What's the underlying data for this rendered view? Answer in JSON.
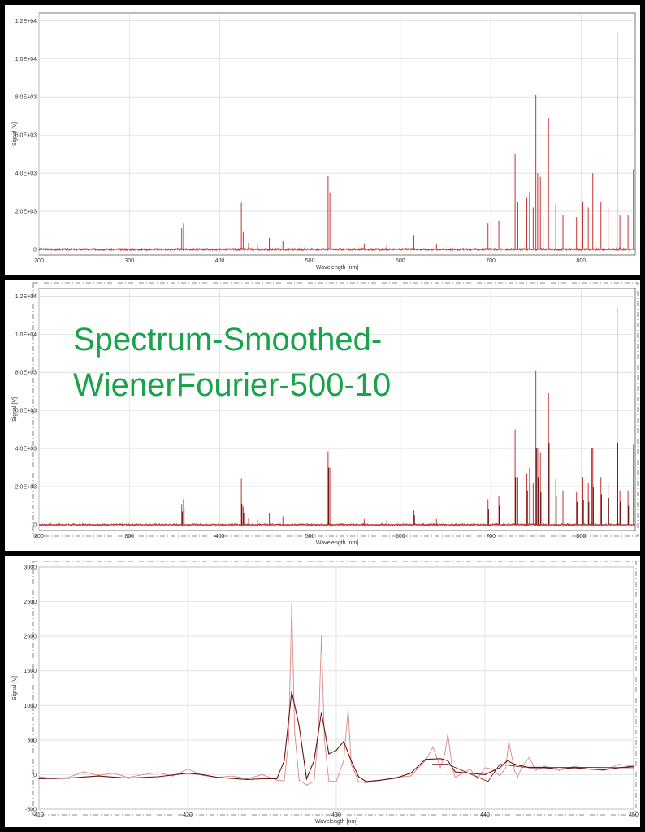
{
  "overlay_title": "Spectrum-Smoothed-\nWienerFourier-500-10",
  "colors": {
    "raw": "#c8322e",
    "raw_light": "#d98a86",
    "smoothed": "#6a1414",
    "grid": "#d8d8d8",
    "frame": "#555555"
  },
  "chart_data": [
    {
      "type": "line",
      "id": "raw-full",
      "xlabel": "Wavelength [nm]",
      "ylabel": "Signal [V]",
      "xlim": [
        200,
        860
      ],
      "ylim": [
        -300,
        12400
      ],
      "x_ticks": [
        200,
        300,
        400,
        500,
        600,
        700,
        800
      ],
      "y_ticks": [
        0,
        2000,
        4000,
        6000,
        8000,
        10000,
        12000
      ],
      "y_tick_labels": [
        "0",
        "2.0E+03",
        "4.0E+03",
        "6.0E+03",
        "8.0E+03",
        "1.0E+04",
        "1.2E+04"
      ],
      "grid": true,
      "baseline": 0,
      "noise_amplitude": 60,
      "series": [
        {
          "peaks": [
            [
              358,
              1100
            ],
            [
              360,
              1350
            ],
            [
              424,
              2450
            ],
            [
              426,
              950
            ],
            [
              428,
              600
            ],
            [
              432,
              350
            ],
            [
              442,
              280
            ],
            [
              455,
              600
            ],
            [
              470,
              450
            ],
            [
              520,
              3850
            ],
            [
              522,
              3000
            ],
            [
              560,
              300
            ],
            [
              585,
              250
            ],
            [
              615,
              750
            ],
            [
              640,
              300
            ],
            [
              697,
              1350
            ],
            [
              709,
              1500
            ],
            [
              727,
              5000
            ],
            [
              730,
              2500
            ],
            [
              740,
              2700
            ],
            [
              743,
              3000
            ],
            [
              747,
              2200
            ],
            [
              750,
              8100
            ],
            [
              752,
              4000
            ],
            [
              755,
              3800
            ],
            [
              758,
              1700
            ],
            [
              764,
              6900
            ],
            [
              772,
              2400
            ],
            [
              780,
              1800
            ],
            [
              795,
              1700
            ],
            [
              802,
              2500
            ],
            [
              808,
              2200
            ],
            [
              811,
              9000
            ],
            [
              813,
              4000
            ],
            [
              822,
              2500
            ],
            [
              830,
              2200
            ],
            [
              840,
              11400
            ],
            [
              843,
              1800
            ],
            [
              852,
              1800
            ],
            [
              858,
              4200
            ]
          ]
        }
      ]
    },
    {
      "type": "line",
      "id": "smoothed-full",
      "xlabel": "Wavelength [nm]",
      "ylabel": "Signal [V]",
      "xlim": [
        200,
        860
      ],
      "ylim": [
        -300,
        12400
      ],
      "x_ticks": [
        200,
        300,
        400,
        500,
        600,
        700,
        800
      ],
      "y_ticks": [
        0,
        2000,
        4000,
        6000,
        8000,
        10000,
        12000
      ],
      "y_tick_labels": [
        "0",
        "2.0E+03",
        "4.0E+03",
        "6.0E+03",
        "8.0E+03",
        "1.0E+04",
        "1.2E+04"
      ],
      "grid": true,
      "baseline": 0,
      "noise_amplitude": 60,
      "series": [
        {
          "peaks": [
            [
              358,
              1100
            ],
            [
              360,
              1350
            ],
            [
              424,
              2450
            ],
            [
              426,
              950
            ],
            [
              428,
              600
            ],
            [
              432,
              350
            ],
            [
              442,
              280
            ],
            [
              455,
              600
            ],
            [
              470,
              450
            ],
            [
              520,
              3850
            ],
            [
              522,
              3000
            ],
            [
              560,
              300
            ],
            [
              585,
              250
            ],
            [
              615,
              750
            ],
            [
              640,
              300
            ],
            [
              697,
              1350
            ],
            [
              709,
              1500
            ],
            [
              727,
              5000
            ],
            [
              730,
              2500
            ],
            [
              740,
              2700
            ],
            [
              743,
              3000
            ],
            [
              747,
              2200
            ],
            [
              750,
              8100
            ],
            [
              752,
              4000
            ],
            [
              755,
              3800
            ],
            [
              758,
              1700
            ],
            [
              764,
              6900
            ],
            [
              772,
              2400
            ],
            [
              780,
              1800
            ],
            [
              795,
              1700
            ],
            [
              802,
              2500
            ],
            [
              808,
              2200
            ],
            [
              811,
              9000
            ],
            [
              813,
              4000
            ],
            [
              822,
              2500
            ],
            [
              830,
              2200
            ],
            [
              840,
              11400
            ],
            [
              843,
              1800
            ],
            [
              852,
              1800
            ],
            [
              858,
              4200
            ]
          ]
        },
        {
          "peaks": [
            [
              358,
              700
            ],
            [
              360,
              900
            ],
            [
              424,
              1100
            ],
            [
              426,
              600
            ],
            [
              520,
              3000
            ],
            [
              615,
              500
            ],
            [
              697,
              800
            ],
            [
              709,
              1000
            ],
            [
              727,
              2500
            ],
            [
              740,
              1800
            ],
            [
              743,
              2200
            ],
            [
              750,
              4000
            ],
            [
              752,
              2500
            ],
            [
              755,
              1700
            ],
            [
              764,
              4300
            ],
            [
              772,
              1500
            ],
            [
              795,
              1200
            ],
            [
              802,
              1300
            ],
            [
              808,
              1200
            ],
            [
              811,
              4000
            ],
            [
              813,
              2000
            ],
            [
              822,
              1600
            ],
            [
              830,
              1400
            ],
            [
              840,
              4300
            ],
            [
              843,
              1200
            ],
            [
              852,
              1000
            ],
            [
              858,
              2000
            ]
          ]
        }
      ]
    },
    {
      "type": "line",
      "id": "zoom",
      "xlabel": "Wavelength [nm]",
      "ylabel": "Signal [V]",
      "xlim": [
        410,
        450
      ],
      "ylim": [
        -500,
        3000
      ],
      "x_ticks": [
        410,
        420,
        430,
        440,
        450
      ],
      "y_ticks": [
        -500,
        0,
        500,
        1000,
        1500,
        2000,
        2500,
        3000
      ],
      "y_tick_labels": [
        "-500",
        "0",
        "500",
        "1000",
        "1500",
        "2000",
        "2500",
        "3000"
      ],
      "grid": true,
      "series": [
        {
          "points": [
            [
              410,
              -30
            ],
            [
              411,
              -60
            ],
            [
              412,
              -40
            ],
            [
              413,
              40
            ],
            [
              414,
              -10
            ],
            [
              415,
              20
            ],
            [
              416,
              -40
            ],
            [
              417,
              0
            ],
            [
              418,
              30
            ],
            [
              419,
              -20
            ],
            [
              420,
              80
            ],
            [
              421,
              -10
            ],
            [
              422,
              -40
            ],
            [
              423,
              -20
            ],
            [
              424,
              -60
            ],
            [
              425,
              0
            ],
            [
              426,
              -80
            ],
            [
              426.5,
              -90
            ],
            [
              426.8,
              500
            ],
            [
              427,
              2480
            ],
            [
              427.2,
              600
            ],
            [
              427.5,
              -80
            ],
            [
              428,
              -150
            ],
            [
              428.5,
              -100
            ],
            [
              428.8,
              600
            ],
            [
              429,
              2000
            ],
            [
              429.2,
              500
            ],
            [
              429.5,
              -90
            ],
            [
              430,
              -100
            ],
            [
              430.5,
              200
            ],
            [
              430.8,
              950
            ],
            [
              431,
              150
            ],
            [
              431.5,
              -100
            ],
            [
              432,
              -120
            ],
            [
              433,
              -80
            ],
            [
              434,
              -40
            ],
            [
              435,
              -20
            ],
            [
              436,
              200
            ],
            [
              436.5,
              400
            ],
            [
              437,
              100
            ],
            [
              437.3,
              300
            ],
            [
              437.5,
              590
            ],
            [
              437.8,
              100
            ],
            [
              438,
              -40
            ],
            [
              439,
              80
            ],
            [
              439.5,
              -60
            ],
            [
              440,
              100
            ],
            [
              440.5,
              80
            ],
            [
              441,
              -20
            ],
            [
              441.4,
              100
            ],
            [
              441.6,
              480
            ],
            [
              442,
              50
            ],
            [
              442.2,
              -30
            ],
            [
              442.5,
              120
            ],
            [
              443,
              250
            ],
            [
              443.4,
              60
            ],
            [
              444,
              120
            ],
            [
              445,
              60
            ],
            [
              446,
              120
            ],
            [
              447,
              80
            ],
            [
              448,
              60
            ],
            [
              449,
              150
            ],
            [
              450,
              120
            ]
          ]
        },
        {
          "points": [
            [
              410,
              -60
            ],
            [
              412,
              -50
            ],
            [
              414,
              -20
            ],
            [
              416,
              -50
            ],
            [
              418,
              -30
            ],
            [
              420,
              20
            ],
            [
              421,
              0
            ],
            [
              422,
              -40
            ],
            [
              424,
              -70
            ],
            [
              425,
              -60
            ],
            [
              426,
              -60
            ],
            [
              426.5,
              200
            ],
            [
              427,
              1200
            ],
            [
              427.5,
              700
            ],
            [
              428,
              -60
            ],
            [
              428.5,
              200
            ],
            [
              429,
              900
            ],
            [
              429.5,
              300
            ],
            [
              430,
              350
            ],
            [
              430.5,
              480
            ],
            [
              431,
              200
            ],
            [
              431.5,
              -30
            ],
            [
              432,
              -100
            ],
            [
              433,
              -80
            ],
            [
              434,
              -50
            ],
            [
              435,
              20
            ],
            [
              436,
              220
            ],
            [
              437,
              230
            ],
            [
              437.5,
              200
            ],
            [
              438,
              40
            ],
            [
              439,
              20
            ],
            [
              440,
              0
            ],
            [
              441,
              100
            ],
            [
              441.5,
              200
            ],
            [
              442,
              150
            ],
            [
              443,
              100
            ],
            [
              444,
              100
            ],
            [
              445,
              80
            ],
            [
              446,
              100
            ],
            [
              447,
              80
            ],
            [
              448,
              70
            ],
            [
              449,
              100
            ],
            [
              450,
              120
            ]
          ]
        },
        {
          "points": [
            [
              436.5,
              150
            ],
            [
              437.5,
              150
            ],
            [
              440.2,
              -100
            ],
            [
              441,
              150
            ],
            [
              442.5,
              110
            ],
            [
              450,
              100
            ]
          ]
        }
      ]
    }
  ]
}
